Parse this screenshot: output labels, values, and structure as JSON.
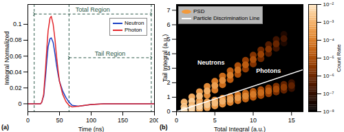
{
  "chart_data": [
    {
      "type": "line",
      "title": "(a)",
      "xlabel": "Time (ns)",
      "ylabel": "Integral Normalized",
      "x": [
        0,
        5,
        10,
        15,
        20,
        22,
        25,
        28,
        30,
        32,
        35,
        37,
        40,
        43,
        45,
        48,
        50,
        55,
        60,
        65,
        70,
        80,
        90,
        100,
        120,
        150,
        200
      ],
      "series": [
        {
          "name": "Neutron",
          "color": "#1a3fc4",
          "values": [
            0,
            0,
            0,
            0,
            0,
            0.002,
            0.01,
            0.035,
            0.055,
            0.072,
            0.082,
            0.083,
            0.077,
            0.062,
            0.05,
            0.036,
            0.028,
            0.016,
            0.008,
            0.002,
            -0.002,
            -0.003,
            -0.002,
            -0.001,
            0,
            0,
            0
          ]
        },
        {
          "name": "Photon",
          "color": "#e3262b",
          "values": [
            0,
            0,
            0,
            0,
            0,
            0.002,
            0.012,
            0.045,
            0.07,
            0.092,
            0.108,
            0.11,
            0.1,
            0.08,
            0.062,
            0.04,
            0.028,
            0.012,
            0.003,
            -0.002,
            -0.004,
            -0.003,
            -0.002,
            -0.001,
            0,
            0,
            0
          ]
        }
      ],
      "xlim": [
        0,
        200
      ],
      "xticks": [
        0,
        50,
        100,
        150,
        200
      ],
      "ylim": [
        -0.01,
        0.125
      ],
      "yticks": [
        0,
        0.02,
        0.04,
        0.06,
        0.08,
        0.1
      ],
      "legend": "upper right",
      "annotations": [
        {
          "text": "Total Region",
          "x": [
            10,
            195
          ],
          "y": 0.113
        },
        {
          "text": "Tail Region",
          "x": [
            65,
            195
          ],
          "y": 0.058
        }
      ]
    },
    {
      "type": "scatter",
      "title": "(b)",
      "xlabel": "Total Integral (a.u.)",
      "ylabel": "Tail Integral (a.u.)",
      "xlim": [
        0,
        16.5
      ],
      "xticks": [
        0,
        5,
        10,
        15
      ],
      "ylim": [
        0,
        7.4
      ],
      "yticks": [
        0,
        1,
        2,
        3,
        4,
        5,
        6,
        7
      ],
      "legend": "upper left",
      "series": [
        {
          "name": "PSD",
          "type": "scatter",
          "color": "#f39a3c",
          "values": [
            [
              1,
              0.66,
              0.001
            ],
            [
              1,
              0.06,
              0.001
            ],
            [
              1,
              0.36,
              0.005
            ],
            [
              2,
              1.02,
              0.0006
            ],
            [
              2,
              0.42,
              0.0006
            ],
            [
              2,
              0.72,
              0.003
            ],
            [
              3,
              1.38,
              0.0003
            ],
            [
              3,
              0.78,
              0.0003
            ],
            [
              3,
              1.08,
              0.0015
            ],
            [
              4,
              1.74,
              0.00016
            ],
            [
              4,
              1.14,
              0.00016
            ],
            [
              4,
              1.44,
              0.0008
            ],
            [
              5,
              2.1,
              8e-05
            ],
            [
              5,
              1.5,
              8e-05
            ],
            [
              5,
              1.8,
              0.0004
            ],
            [
              6,
              2.46,
              4e-05
            ],
            [
              6,
              1.86,
              4e-05
            ],
            [
              6,
              2.16,
              0.0002
            ],
            [
              7,
              2.82,
              2e-05
            ],
            [
              7,
              2.22,
              2e-05
            ],
            [
              7,
              2.52,
              0.0001
            ],
            [
              8,
              3.18,
              1e-05
            ],
            [
              8,
              2.58,
              1e-05
            ],
            [
              8,
              2.88,
              5e-05
            ],
            [
              9,
              3.54,
              4e-06
            ],
            [
              9,
              2.94,
              4e-06
            ],
            [
              9,
              3.24,
              2e-05
            ],
            [
              10,
              3.9,
              2e-06
            ],
            [
              10,
              3.3,
              2e-06
            ],
            [
              10,
              3.6,
              1e-05
            ],
            [
              11,
              4.26,
              1e-06
            ],
            [
              11,
              3.66,
              1e-06
            ],
            [
              11,
              3.96,
              5e-06
            ],
            [
              12,
              4.62,
              4e-07
            ],
            [
              12,
              4.02,
              4e-07
            ],
            [
              12,
              4.32,
              2e-06
            ],
            [
              13,
              4.98,
              1.6e-07
            ],
            [
              13,
              4.38,
              1.6e-07
            ],
            [
              13,
              4.68,
              8e-07
            ],
            [
              14,
              5.34,
              4e-08
            ],
            [
              14,
              4.74,
              4e-08
            ],
            [
              14,
              5.04,
              2e-07
            ],
            [
              1,
              0.32,
              0.0016
            ],
            [
              1,
              0.12,
              0.008
            ],
            [
              2,
              0.44,
              0.0012
            ],
            [
              2,
              0.04,
              0.0012
            ],
            [
              2,
              0.24,
              0.006
            ],
            [
              3,
              0.56,
              0.0008
            ],
            [
              3,
              0.16,
              0.0008
            ],
            [
              3,
              0.36,
              0.004
            ],
            [
              4,
              0.68,
              0.0005
            ],
            [
              4,
              0.28,
              0.0005
            ],
            [
              4,
              0.48,
              0.0025
            ],
            [
              5,
              0.8,
              0.0003
            ],
            [
              5,
              0.4,
              0.0003
            ],
            [
              5,
              0.6,
              0.0015
            ],
            [
              6,
              0.92,
              0.00018
            ],
            [
              6,
              0.52,
              0.00018
            ],
            [
              6,
              0.72,
              0.0009
            ],
            [
              7,
              1.04,
              0.0001
            ],
            [
              7,
              0.64,
              0.0001
            ],
            [
              7,
              0.84,
              0.0005
            ],
            [
              8,
              1.16,
              6e-05
            ],
            [
              8,
              0.76,
              6e-05
            ],
            [
              8,
              0.96,
              0.0003
            ],
            [
              9,
              1.28,
              3e-05
            ],
            [
              9,
              0.88,
              3e-05
            ],
            [
              9,
              1.08,
              0.00015
            ],
            [
              10,
              1.4,
              1.6e-05
            ],
            [
              10,
              1.0,
              1.6e-05
            ],
            [
              10,
              1.2,
              8e-05
            ],
            [
              11,
              1.52,
              8e-06
            ],
            [
              11,
              1.12,
              8e-06
            ],
            [
              11,
              1.32,
              4e-05
            ],
            [
              12,
              1.64,
              4e-06
            ],
            [
              12,
              1.24,
              4e-06
            ],
            [
              12,
              1.44,
              2e-05
            ],
            [
              13,
              1.76,
              1.6e-06
            ],
            [
              13,
              1.36,
              1.6e-06
            ],
            [
              13,
              1.56,
              8e-06
            ],
            [
              14,
              1.88,
              6e-07
            ],
            [
              14,
              1.48,
              6e-07
            ],
            [
              14,
              1.68,
              3e-06
            ],
            [
              15,
              2.0,
              1.2e-07
            ],
            [
              15,
              1.6,
              1.2e-07
            ],
            [
              15,
              1.8,
              6e-07
            ]
          ]
        },
        {
          "name": "Particle Discrimination Line",
          "type": "line",
          "color": "#ffffff",
          "x": [
            0,
            16.5
          ],
          "values": [
            0,
            2.9
          ]
        }
      ],
      "annotations": [
        {
          "text": "Neutrons",
          "x": 4.5,
          "y": 3.4
        },
        {
          "text": "Photons",
          "x": 12,
          "y": 2.8
        }
      ],
      "colorbar": {
        "label": "Count Rate",
        "range": [
          1e-08,
          0.01
        ],
        "ticks": [
          {
            "value": 1e-08,
            "label": "10⁻⁸"
          },
          {
            "value": 1e-07,
            "label": "10⁻⁷"
          },
          {
            "value": 1e-06,
            "label": "10⁻⁶"
          },
          {
            "value": 1e-05,
            "label": "10⁻⁵"
          },
          {
            "value": 0.0001,
            "label": "10⁻⁴"
          },
          {
            "value": 0.001,
            "label": "10⁻³"
          },
          {
            "value": 0.01,
            "label": "10⁻²"
          }
        ]
      }
    }
  ]
}
